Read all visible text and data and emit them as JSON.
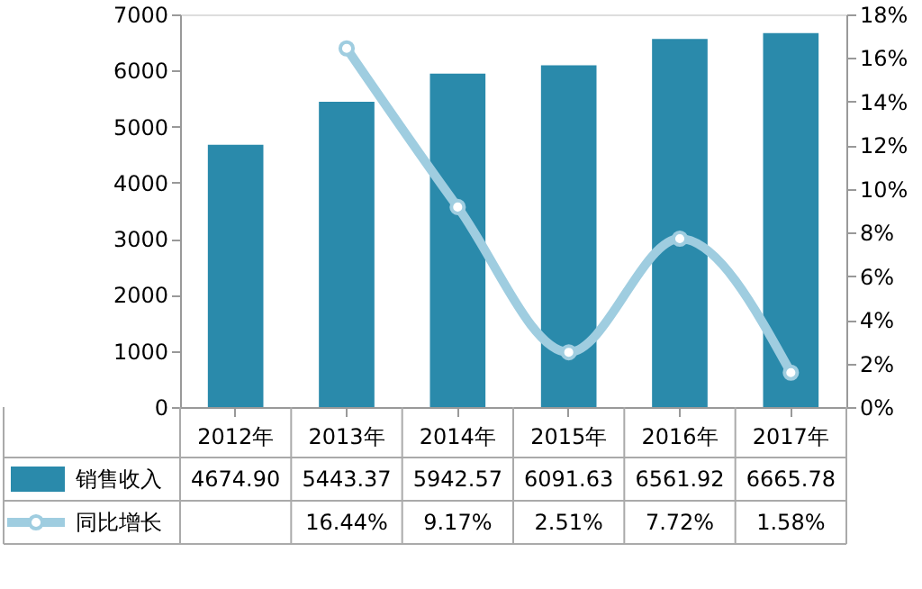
{
  "chart_data": {
    "type": "bar",
    "categories": [
      "2012年",
      "2013年",
      "2014年",
      "2015年",
      "2016年",
      "2017年"
    ],
    "series": [
      {
        "name": "销售收入",
        "color": "#2a8aab",
        "values": [
          4674.9,
          5443.37,
          5942.57,
          6091.63,
          6561.92,
          6665.78
        ],
        "value_labels": [
          "4674.90",
          "5443.37",
          "5942.57",
          "6091.63",
          "6561.92",
          "6665.78"
        ]
      },
      {
        "name": "同比增长",
        "type": "line",
        "axis": "y2",
        "color": "#9fcde0",
        "marker": "circle",
        "values": [
          null,
          16.44,
          9.17,
          2.51,
          7.72,
          1.58
        ],
        "value_labels": [
          null,
          "16.44%",
          "9.17%",
          "2.51%",
          "7.72%",
          "1.58%"
        ]
      }
    ],
    "ylim": [
      0,
      7000
    ],
    "yticks": [
      0,
      1000,
      2000,
      3000,
      4000,
      5000,
      6000,
      7000
    ],
    "y2lim": [
      0,
      18
    ],
    "y2ticks": [
      {
        "value": 0,
        "label": "0%"
      },
      {
        "value": 2,
        "label": "2%"
      },
      {
        "value": 4,
        "label": "4%"
      },
      {
        "value": 6,
        "label": "6%"
      },
      {
        "value": 8,
        "label": "8%"
      },
      {
        "value": 10,
        "label": "10%"
      },
      {
        "value": 12,
        "label": "12%"
      },
      {
        "value": 14,
        "label": "14%"
      },
      {
        "value": 16,
        "label": "16%"
      },
      {
        "value": 18,
        "label": "18%"
      }
    ],
    "grid": false,
    "legend": "bottom"
  }
}
